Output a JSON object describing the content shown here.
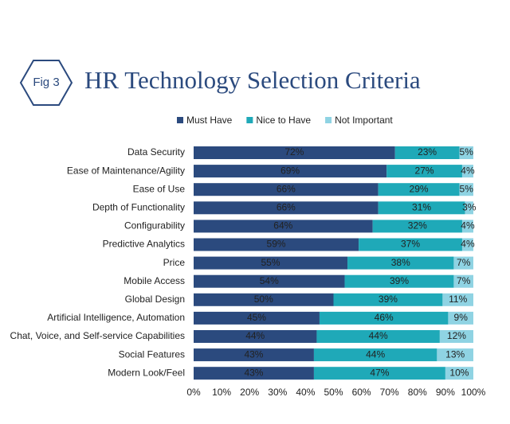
{
  "chart_data": {
    "type": "stacked-bar-horizontal",
    "badge": "Fig 3",
    "title": "HR Technology Selection Criteria",
    "categories": [
      "Data Security",
      "Ease of Maintenance/Agility",
      "Ease of Use",
      "Depth of Functionality",
      "Configurability",
      "Predictive Analytics",
      "Price",
      "Mobile Access",
      "Global Design",
      "Artificial Intelligence, Automation",
      "Chat, Voice, and Self-service Capabilities",
      "Social Features",
      "Modern Look/Feel"
    ],
    "series": [
      {
        "name": "Must Have",
        "color": "#2b4a7e",
        "values": [
          72,
          69,
          66,
          66,
          64,
          59,
          55,
          54,
          50,
          45,
          44,
          43,
          43
        ],
        "value_labels": [
          "72%",
          "69%",
          "66%",
          "66%",
          "64%",
          "59%",
          "55%",
          "54%",
          "50%",
          "45%",
          "44%",
          "43%",
          "43%"
        ]
      },
      {
        "name": "Nice to Have",
        "color": "#1fa9b8",
        "values": [
          23,
          27,
          29,
          31,
          32,
          37,
          38,
          39,
          39,
          46,
          44,
          44,
          47
        ],
        "value_labels": [
          "23%",
          "27%",
          "29%",
          "31%",
          "32%",
          "37%",
          "38%",
          "39%",
          "39%",
          "46%",
          "44%",
          "44%",
          "47%"
        ]
      },
      {
        "name": "Not Important",
        "color": "#8fd3e3",
        "values": [
          5,
          4,
          5,
          3,
          4,
          4,
          7,
          7,
          11,
          9,
          12,
          13,
          10
        ],
        "value_labels": [
          "5%",
          "4%",
          "5%",
          "3%",
          "4%",
          "4%",
          "7%",
          "7%",
          "11%",
          "9%",
          "12%",
          "13%",
          "10%"
        ]
      }
    ],
    "xlim": [
      0,
      100
    ],
    "xticks": [
      {
        "value": 0,
        "label": "0%"
      },
      {
        "value": 10,
        "label": "10%"
      },
      {
        "value": 20,
        "label": "20%"
      },
      {
        "value": 30,
        "label": "30%"
      },
      {
        "value": 40,
        "label": "40%"
      },
      {
        "value": 50,
        "label": "50%"
      },
      {
        "value": 60,
        "label": "60%"
      },
      {
        "value": 70,
        "label": "70%"
      },
      {
        "value": 80,
        "label": "80%"
      },
      {
        "value": 90,
        "label": "90%"
      },
      {
        "value": 100,
        "label": "100%"
      }
    ],
    "legend": "top"
  }
}
